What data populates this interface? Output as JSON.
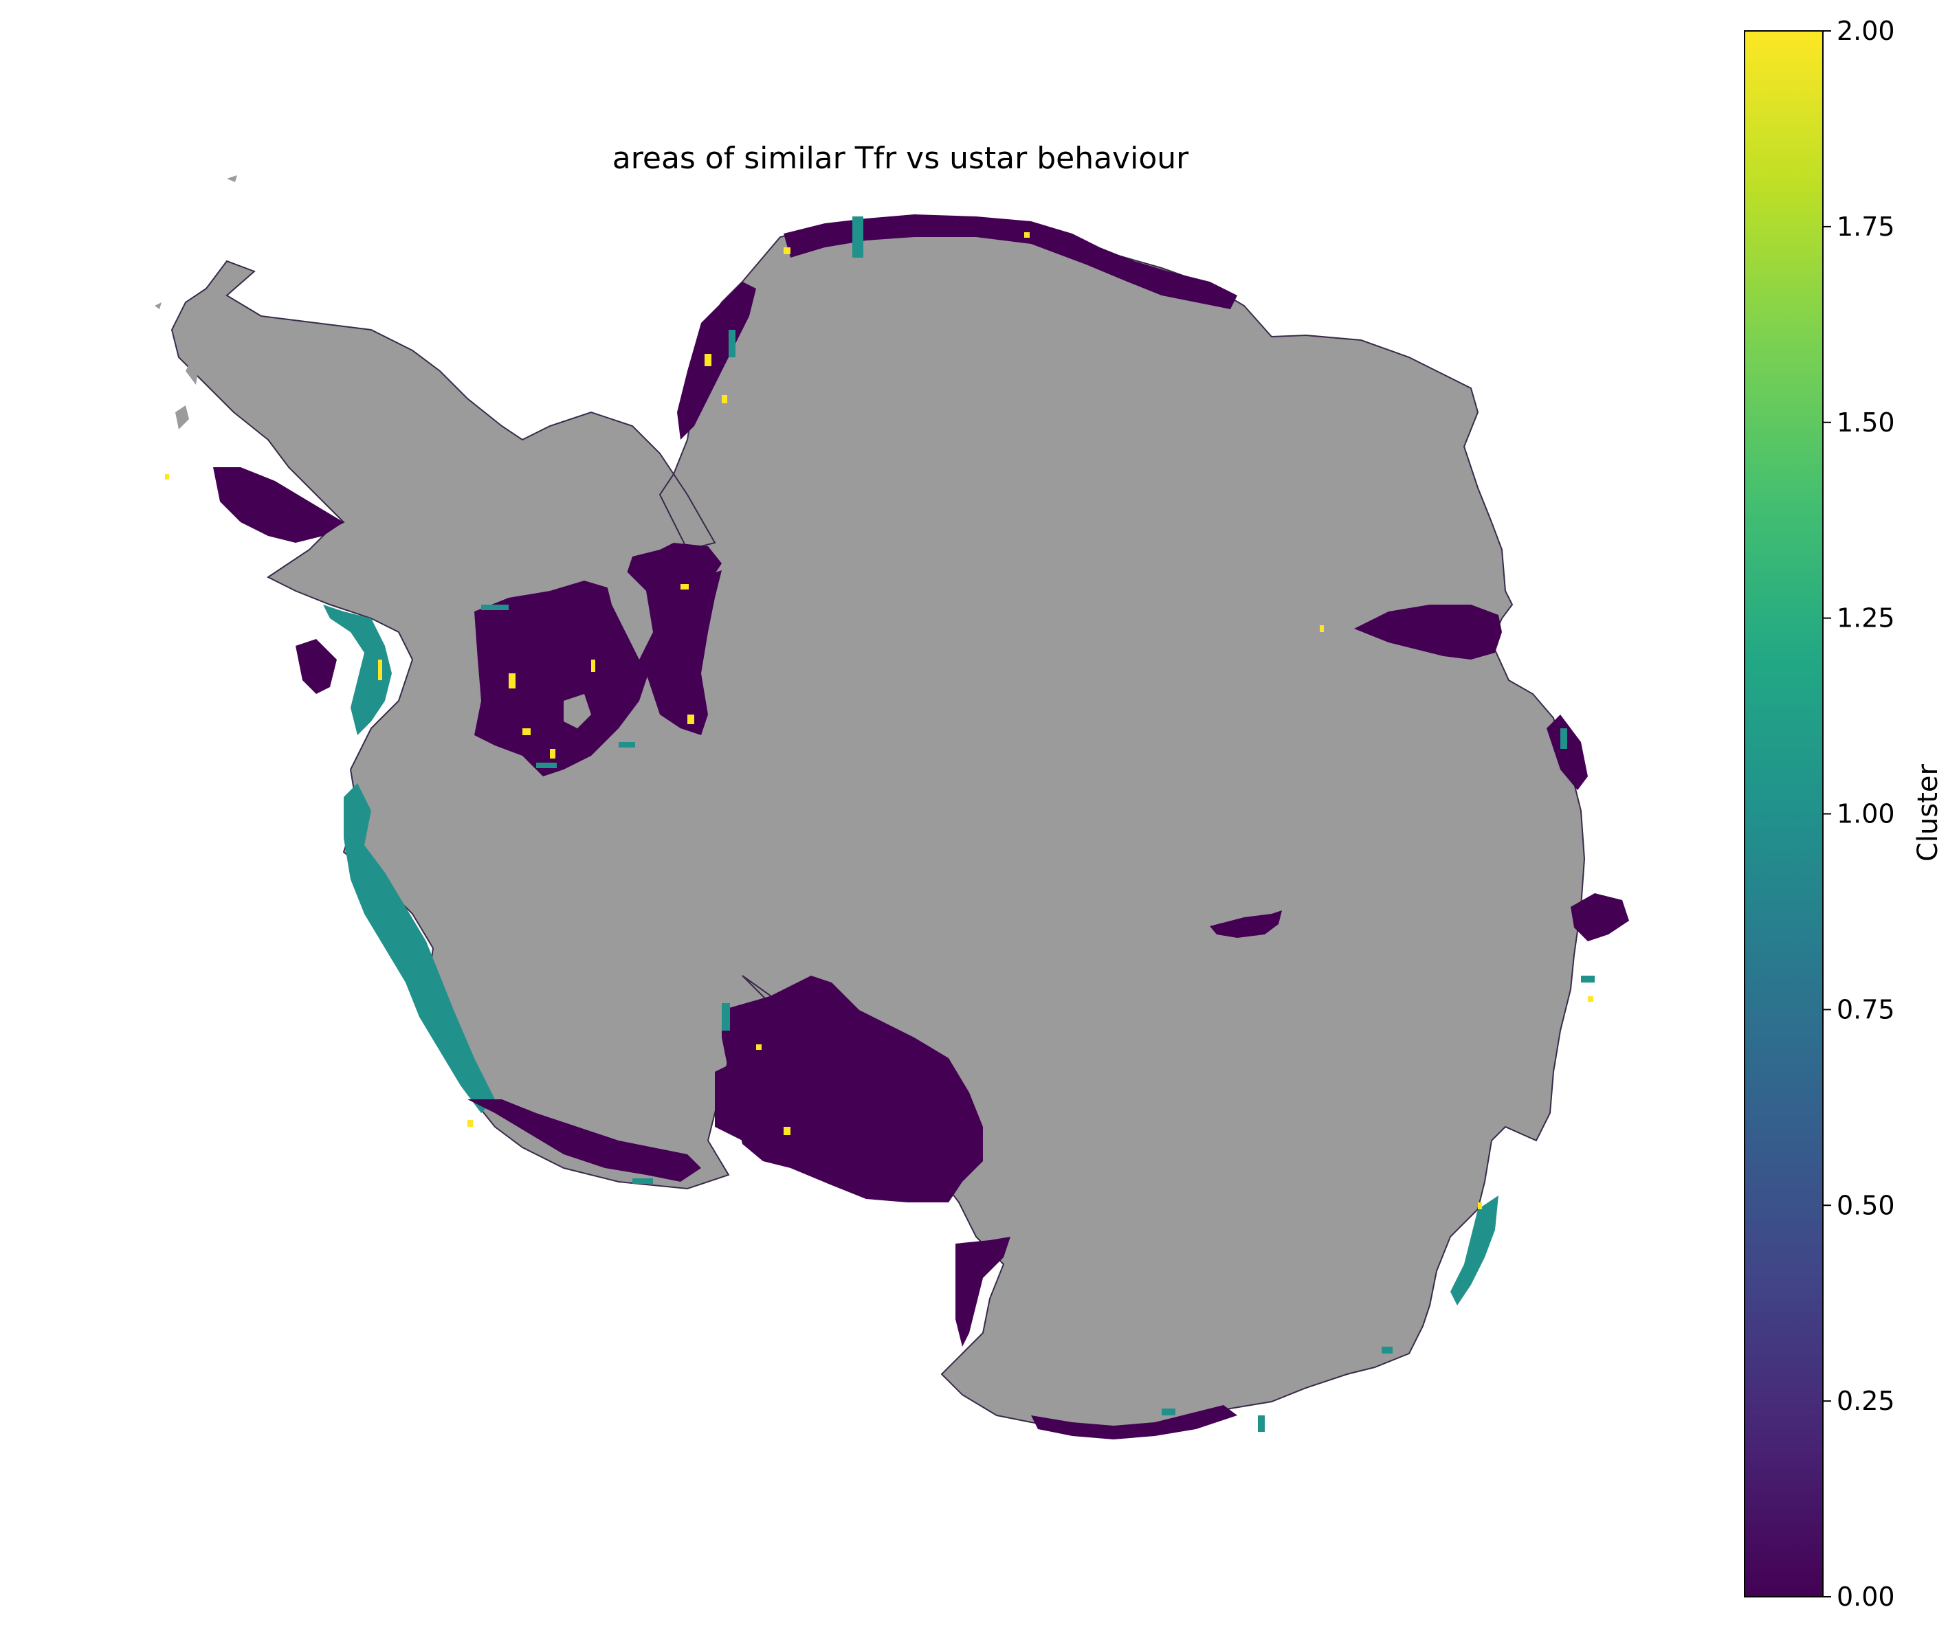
{
  "title": "areas of similar Tfr vs ustar behaviour",
  "colors": {
    "land": "#9b9b9b",
    "cluster_0": "#440154",
    "cluster_1": "#21918c",
    "cluster_2": "#fde725"
  },
  "colorbar": {
    "label": "Cluster",
    "colormap": "viridis",
    "vmin": 0.0,
    "vmax": 2.0,
    "ticks": [
      "0.00",
      "0.25",
      "0.50",
      "0.75",
      "1.00",
      "1.25",
      "1.50",
      "1.75",
      "2.00"
    ]
  },
  "chart_data": {
    "type": "heatmap",
    "title": "areas of similar Tfr vs ustar behaviour",
    "colorbar_label": "Cluster",
    "colorbar_range": [
      0.0,
      2.0
    ],
    "categories": [
      0,
      1,
      2
    ],
    "background_region": "grounded ice (grey)"
  }
}
